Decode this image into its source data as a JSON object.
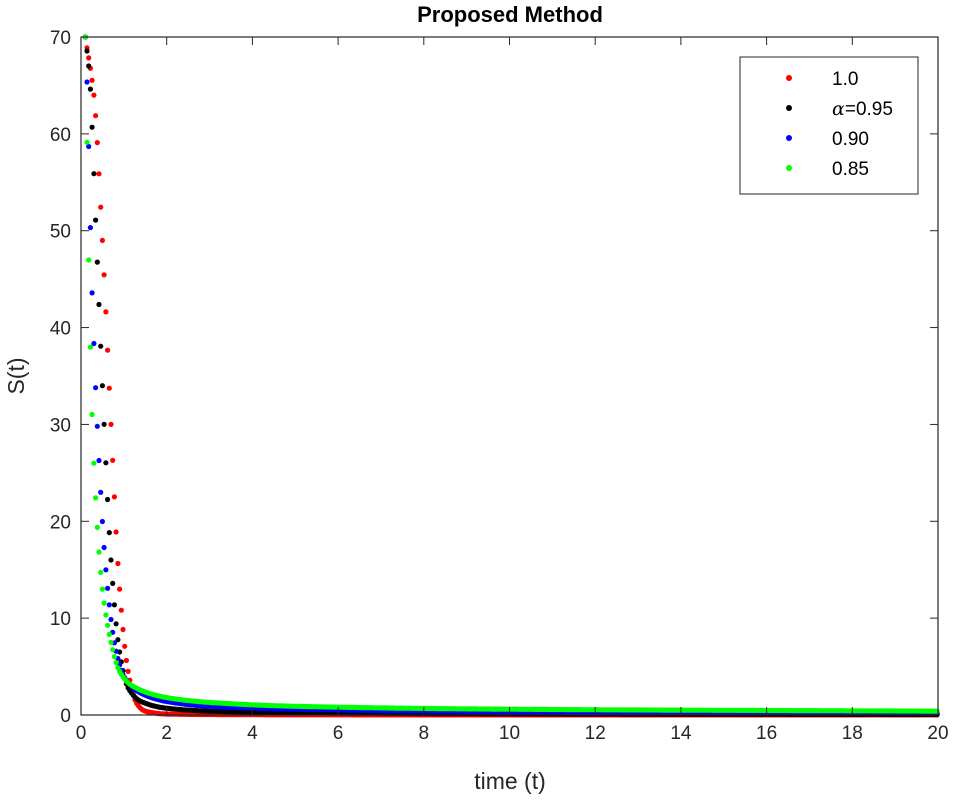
{
  "chart_data": {
    "type": "scatter",
    "title": "Proposed Method",
    "xlabel": "time (t)",
    "ylabel": "S(t)",
    "xlim": [
      0,
      20
    ],
    "ylim": [
      0,
      70
    ],
    "xticks": [
      "0",
      "2",
      "4",
      "6",
      "8",
      "10",
      "12",
      "14",
      "16",
      "18",
      "20"
    ],
    "yticks": [
      "0",
      "10",
      "20",
      "30",
      "40",
      "50",
      "60",
      "70"
    ],
    "grid": false,
    "legend_position": "top-right",
    "legend_prefix": "α=",
    "series": [
      {
        "name": "1.0",
        "color": "#ff0000",
        "x": [
          0.1,
          0.3,
          0.5,
          0.7,
          0.9,
          1.1,
          1.3,
          1.5,
          2,
          3,
          5,
          10,
          20
        ],
        "y": [
          70,
          64,
          49,
          30,
          13,
          4.5,
          1.2,
          0.4,
          0.1,
          0.05,
          0.02,
          0.01,
          0.01
        ]
      },
      {
        "name": "0.95",
        "color": "#000000",
        "x": [
          0.1,
          0.2,
          0.35,
          0.5,
          0.7,
          0.9,
          1.1,
          1.4,
          2,
          3,
          5,
          10,
          20
        ],
        "y": [
          70,
          66,
          50,
          34,
          16,
          6.5,
          2.8,
          1.4,
          0.7,
          0.4,
          0.25,
          0.12,
          0.06
        ]
      },
      {
        "name": "0.90",
        "color": "#0000ff",
        "x": [
          0.1,
          0.15,
          0.25,
          0.4,
          0.6,
          0.8,
          1.0,
          1.3,
          2,
          3,
          5,
          10,
          20
        ],
        "y": [
          70,
          64,
          45,
          28,
          14,
          7,
          4,
          2.5,
          1.4,
          0.9,
          0.6,
          0.35,
          0.2
        ]
      },
      {
        "name": "0.85",
        "color": "#00ff00",
        "x": [
          0.1,
          0.13,
          0.2,
          0.3,
          0.5,
          0.7,
          0.9,
          1.2,
          2,
          3,
          5,
          10,
          20
        ],
        "y": [
          70,
          62,
          42,
          26,
          13,
          7.5,
          4.5,
          3,
          1.8,
          1.3,
          0.9,
          0.6,
          0.4
        ]
      }
    ]
  }
}
